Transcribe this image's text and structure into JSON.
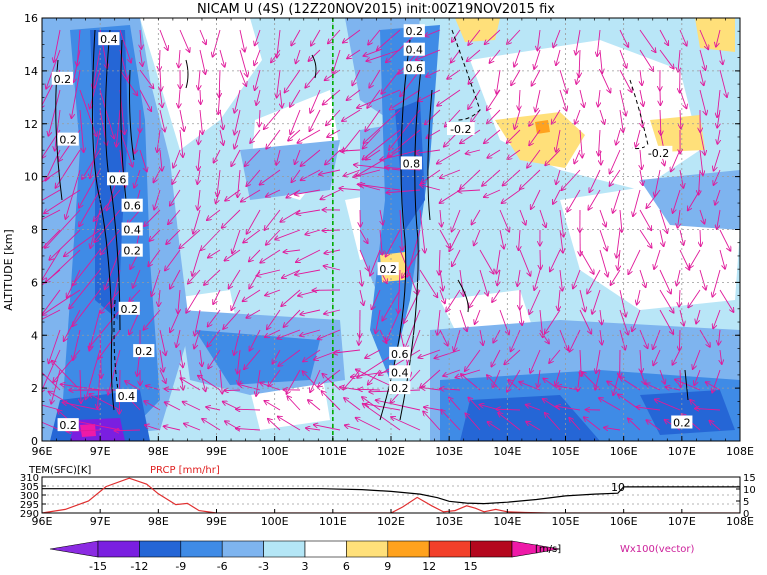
{
  "chart_data": [
    {
      "type": "heatmap",
      "title": "NICAM U (4S) (12Z20NOV2015) init:00Z19NOV2015 fix",
      "xlabel": "",
      "ylabel": "ALTITUDE [km]",
      "xlim": [
        96,
        108
      ],
      "ylim": [
        0,
        16
      ],
      "x_tick_labels": [
        "96E",
        "97E",
        "98E",
        "99E",
        "100E",
        "101E",
        "102E",
        "103E",
        "104E",
        "105E",
        "106E",
        "107E",
        "108E"
      ],
      "y_tick_labels": [
        "0",
        "2",
        "4",
        "6",
        "8",
        "10",
        "12",
        "14",
        "16"
      ],
      "grid": true,
      "reference_line": {
        "x": 101,
        "color": "#00aa00",
        "style": "dashed"
      },
      "contour_labels": [
        {
          "text": "0.4",
          "x": 97.15,
          "y": 15.2
        },
        {
          "text": "0.2",
          "x": 96.35,
          "y": 13.7
        },
        {
          "text": "0.2",
          "x": 96.45,
          "y": 11.4
        },
        {
          "text": "0.6",
          "x": 97.3,
          "y": 9.9
        },
        {
          "text": "0.6",
          "x": 97.55,
          "y": 8.9
        },
        {
          "text": "0.4",
          "x": 97.55,
          "y": 8.0
        },
        {
          "text": "0.2",
          "x": 97.55,
          "y": 7.2
        },
        {
          "text": "0.2",
          "x": 97.5,
          "y": 5.0
        },
        {
          "text": "0.2",
          "x": 97.75,
          "y": 3.4
        },
        {
          "text": "0.4",
          "x": 97.45,
          "y": 1.7
        },
        {
          "text": "0.2",
          "x": 96.45,
          "y": 0.6
        },
        {
          "text": "0.2",
          "x": 102.4,
          "y": 15.5
        },
        {
          "text": "0.4",
          "x": 102.4,
          "y": 14.8
        },
        {
          "text": "0.6",
          "x": 102.4,
          "y": 14.1
        },
        {
          "text": "-0.2",
          "x": 103.2,
          "y": 11.8
        },
        {
          "text": "0.8",
          "x": 102.35,
          "y": 10.5
        },
        {
          "text": "-0.2",
          "x": 106.6,
          "y": 10.9
        },
        {
          "text": "0.2",
          "x": 101.95,
          "y": 6.5
        },
        {
          "text": "0.6",
          "x": 102.15,
          "y": 3.3
        },
        {
          "text": "0.4",
          "x": 102.15,
          "y": 2.6
        },
        {
          "text": "0.2",
          "x": 102.15,
          "y": 2.0
        },
        {
          "text": "0.2",
          "x": 107.0,
          "y": 0.7
        }
      ]
    },
    {
      "type": "line",
      "xlim": [
        96,
        108
      ],
      "x_tick_labels": [
        "96E",
        "97E",
        "98E",
        "99E",
        "100E",
        "101E",
        "102E",
        "103E",
        "104E",
        "105E",
        "106E",
        "107E",
        "108E"
      ],
      "left_axis": {
        "label": "TEM(SFC)[K]",
        "ticks": [
          "310",
          "305",
          "300",
          "295",
          "290"
        ],
        "range": [
          290,
          310
        ]
      },
      "right_axis": {
        "label": "PRCP [mm/hr]",
        "label_color": "#e02020",
        "ticks": [
          "15",
          "10",
          "5",
          "0"
        ],
        "range": [
          0,
          15
        ]
      },
      "annotation": "10",
      "series": [
        {
          "axis": "left",
          "color": "#000000",
          "x": [
            96.0,
            97.0,
            98.0,
            99.0,
            100.0,
            100.8,
            101.5,
            102.0,
            102.5,
            102.8,
            103.0,
            103.3,
            103.6,
            104.0,
            104.5,
            105.0,
            105.5,
            105.9,
            106.0,
            106.5,
            107.0,
            107.5,
            108.0
          ],
          "values": [
            303.5,
            303.5,
            303.5,
            303.5,
            303.5,
            303.5,
            303.0,
            302.0,
            300.5,
            298.5,
            296.5,
            295.5,
            295.2,
            296.0,
            297.5,
            299.5,
            300.5,
            301.0,
            304.5,
            304.5,
            304.5,
            304.5,
            304.5
          ]
        },
        {
          "axis": "right",
          "color": "#e03030",
          "x": [
            96.0,
            96.4,
            96.8,
            97.1,
            97.5,
            97.8,
            98.0,
            98.3,
            98.5,
            98.7,
            99.0,
            99.5,
            100.0,
            100.5,
            101.0,
            101.5,
            102.0,
            102.2,
            102.45,
            102.7,
            102.9,
            103.1,
            103.3,
            103.45,
            103.6,
            103.8,
            104.0,
            104.3,
            104.7,
            105.5,
            106.0,
            106.5,
            107.0,
            107.5,
            108.0
          ],
          "values": [
            0.0,
            1.5,
            5.0,
            11.0,
            14.5,
            12.0,
            8.0,
            3.5,
            4.0,
            1.0,
            0.0,
            0.0,
            0.0,
            0.0,
            0.0,
            0.0,
            0.0,
            2.5,
            6.5,
            3.0,
            0.5,
            1.0,
            3.0,
            2.0,
            0.5,
            1.5,
            0.5,
            0.2,
            0.0,
            0.0,
            0.0,
            0.0,
            0.0,
            0.0,
            0.0
          ]
        }
      ]
    }
  ],
  "colorbar": {
    "labels": [
      "-15",
      "-12",
      "-9",
      "-6",
      "-3",
      "3",
      "6",
      "9",
      "12",
      "15"
    ],
    "colors": [
      "#7a1fe0",
      "#2566d6",
      "#3f8be6",
      "#7eb4ef",
      "#b4e6f6",
      "#ffffff",
      "#ffe07a",
      "#ffa21e",
      "#f2402a",
      "#b4081e"
    ],
    "end_left": "#8b2be2",
    "end_right": "#ee1aa8",
    "unit": "[m/s]",
    "vector_legend": "Wx100(vector)"
  }
}
